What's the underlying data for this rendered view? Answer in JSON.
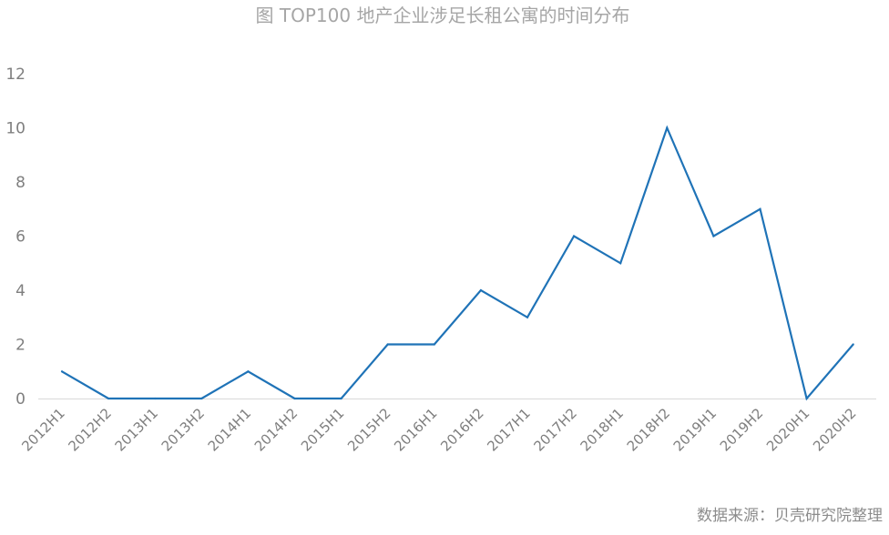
{
  "chart_data": {
    "type": "line",
    "title": "图 TOP100 地产企业涉足长租公寓的时间分布",
    "categories": [
      "2012H1",
      "2012H2",
      "2013H1",
      "2013H2",
      "2014H1",
      "2014H2",
      "2015H1",
      "2015H2",
      "2016H1",
      "2016H2",
      "2017H1",
      "2017H2",
      "2018H1",
      "2018H2",
      "2019H1",
      "2019H2",
      "2020H1",
      "2020H2"
    ],
    "series": [
      {
        "values": [
          1,
          0,
          0,
          0,
          1,
          0,
          0,
          2,
          2,
          4,
          3,
          6,
          5,
          10,
          6,
          7,
          0,
          2
        ],
        "color": "#1f73b7"
      }
    ],
    "ylim": [
      0,
      12
    ],
    "yticks": [
      "0",
      "2",
      "4",
      "6",
      "8",
      "10",
      "12"
    ],
    "grid": false,
    "legend": "none",
    "source_note": "数据来源：贝壳研究院整理",
    "axis_color": "#d9d9d9"
  }
}
